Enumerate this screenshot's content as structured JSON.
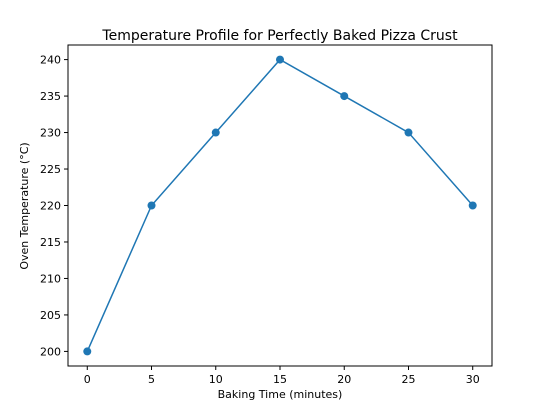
{
  "chart_data": {
    "type": "line",
    "title": "Temperature Profile for Perfectly Baked Pizza Crust",
    "xlabel": "Baking Time (minutes)",
    "ylabel": "Oven Temperature (°C)",
    "x": [
      0,
      5,
      10,
      15,
      20,
      25,
      30
    ],
    "series": [
      {
        "values": [
          200,
          220,
          230,
          240,
          235,
          230,
          220
        ]
      }
    ],
    "xlim": [
      -1.5,
      31.5
    ],
    "ylim": [
      198,
      242
    ],
    "xticks": [
      0,
      5,
      10,
      15,
      20,
      25,
      30
    ],
    "yticks": [
      200,
      205,
      210,
      215,
      220,
      225,
      230,
      235,
      240
    ],
    "grid": false,
    "legend": "none",
    "markers": true,
    "colors": {
      "line": "#1f77b4",
      "axes": "#000000",
      "background": "#ffffff"
    }
  }
}
